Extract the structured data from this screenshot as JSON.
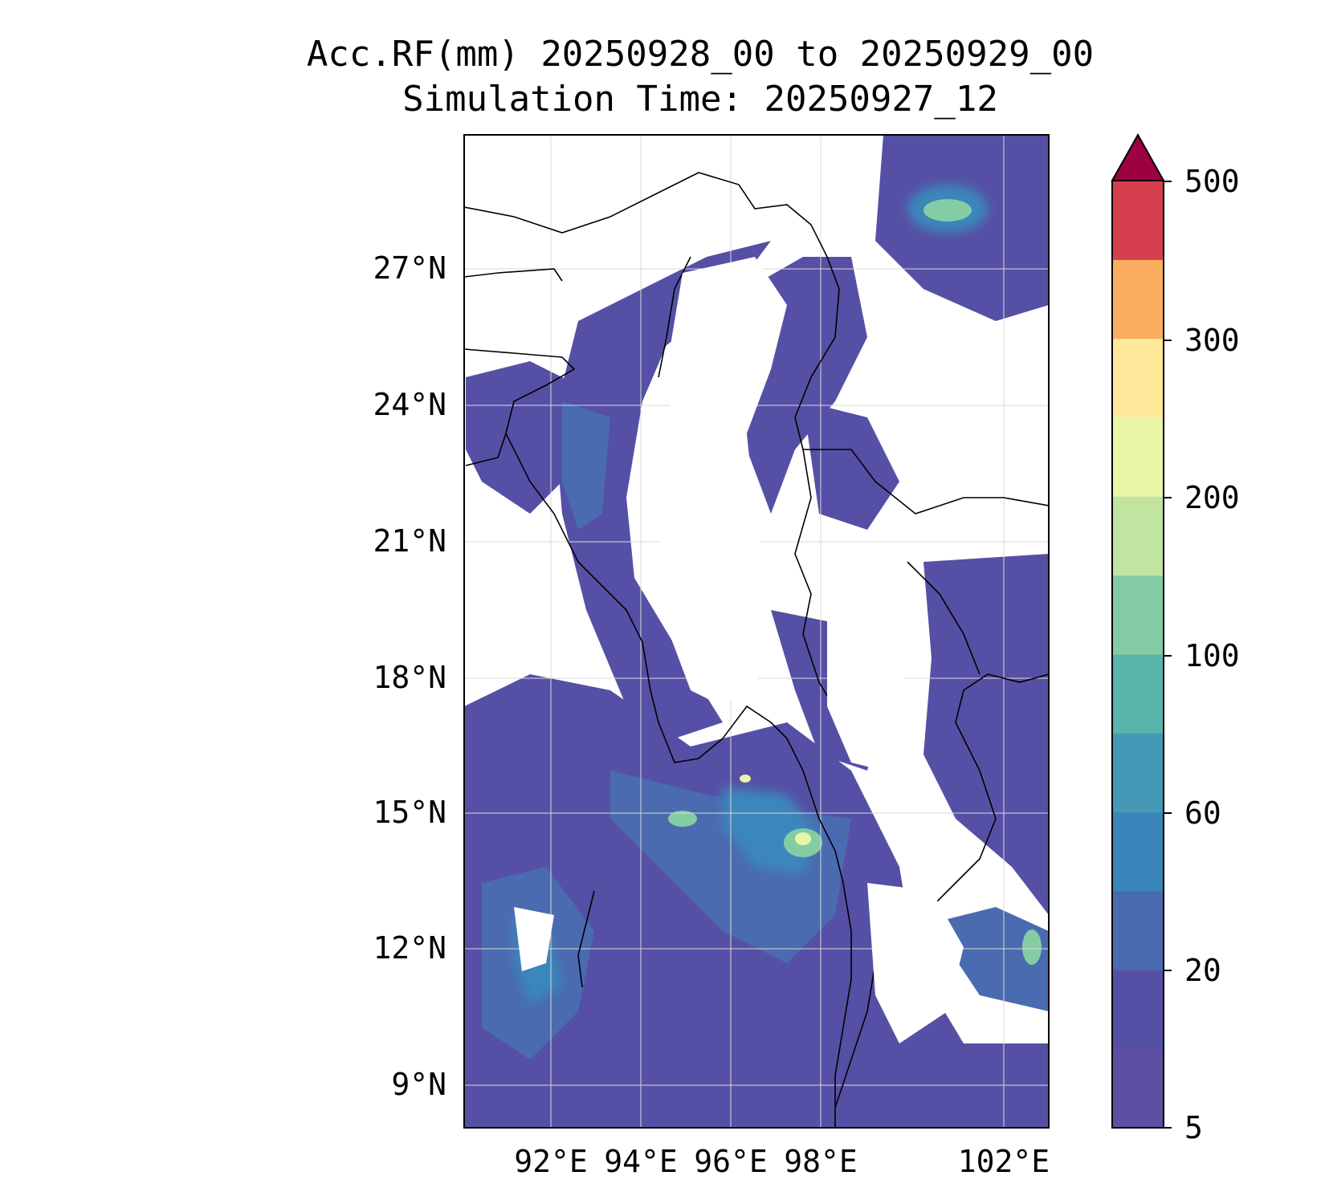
{
  "title": {
    "line1": "Acc.RF(mm) 20250928_00 to 20250929_00",
    "line2": "Simulation Time: 20250927_12"
  },
  "axes": {
    "lat_ticks": [
      "27°N",
      "24°N",
      "21°N",
      "18°N",
      "15°N",
      "12°N",
      "9°N"
    ],
    "lon_ticks": [
      "92°E",
      "94°E",
      "96°E",
      "98°E",
      "102°E"
    ]
  },
  "colorbar": {
    "tick_labels": [
      "500",
      "300",
      "200",
      "100",
      "60",
      "20",
      "5"
    ],
    "colors": [
      "#5e4fa2",
      "#5550a5",
      "#4a6bb0",
      "#3a86bb",
      "#4599b6",
      "#5bb4a9",
      "#84cda4",
      "#c1e4a1",
      "#ebf5a8",
      "#fee99a",
      "#fcad60",
      "#d6404e",
      "#9e0142"
    ],
    "extend": "max"
  },
  "map": {
    "type": "filled-contour precipitation map",
    "palette_name": "Spectral_r",
    "gridlines": true
  }
}
